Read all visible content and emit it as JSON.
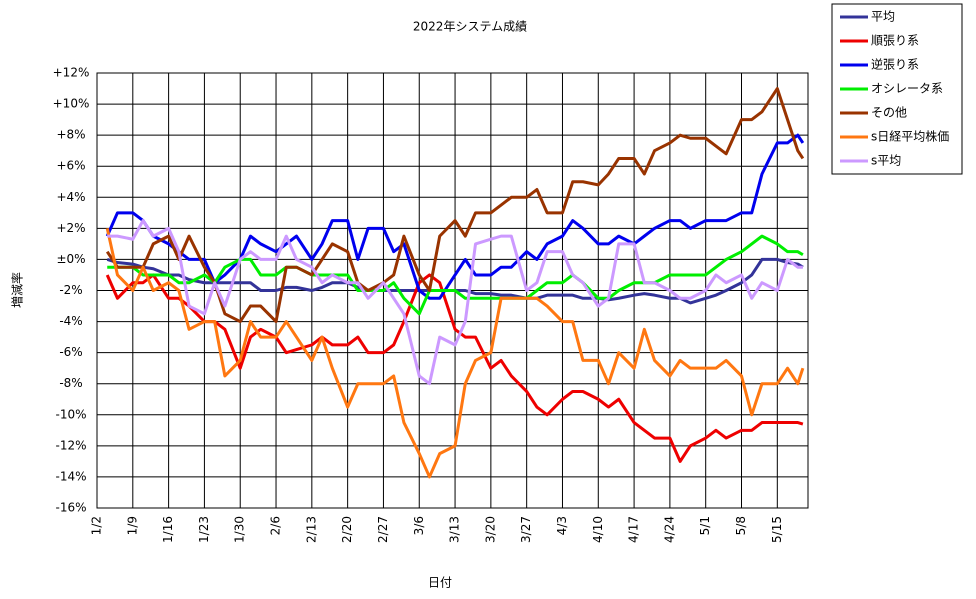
{
  "chart_data": {
    "type": "line",
    "title": "2022年システム成績",
    "x_label": "日付",
    "y_label": "増減率",
    "x": [
      2,
      4,
      7,
      9,
      11,
      14,
      16,
      18,
      21,
      23,
      25,
      28,
      30,
      32,
      35,
      37,
      39,
      42,
      44,
      46,
      49,
      51,
      53,
      56,
      58,
      60,
      63,
      65,
      67,
      70,
      72,
      74,
      77,
      79,
      81,
      84,
      86,
      88,
      91,
      93,
      95,
      98,
      100,
      102,
      105,
      107,
      109,
      112,
      114,
      116,
      119,
      121,
      123,
      126,
      128,
      130,
      133,
      135,
      137,
      138
    ],
    "xlim": [
      0,
      139
    ],
    "xticks": [
      {
        "value": 0,
        "label": "1/2"
      },
      {
        "value": 7,
        "label": "1/9"
      },
      {
        "value": 14,
        "label": "1/16"
      },
      {
        "value": 21,
        "label": "1/23"
      },
      {
        "value": 28,
        "label": "1/30"
      },
      {
        "value": 35,
        "label": "2/6"
      },
      {
        "value": 42,
        "label": "2/13"
      },
      {
        "value": 49,
        "label": "2/20"
      },
      {
        "value": 56,
        "label": "2/27"
      },
      {
        "value": 63,
        "label": "3/6"
      },
      {
        "value": 70,
        "label": "3/13"
      },
      {
        "value": 77,
        "label": "3/20"
      },
      {
        "value": 84,
        "label": "3/27"
      },
      {
        "value": 91,
        "label": "4/3"
      },
      {
        "value": 98,
        "label": "4/10"
      },
      {
        "value": 105,
        "label": "4/17"
      },
      {
        "value": 112,
        "label": "4/24"
      },
      {
        "value": 119,
        "label": "5/1"
      },
      {
        "value": 126,
        "label": "5/8"
      },
      {
        "value": 133,
        "label": "5/15"
      }
    ],
    "ylim": [
      -16,
      12
    ],
    "yticks": [
      {
        "value": -16,
        "label": "-16%"
      },
      {
        "value": -14,
        "label": "-14%"
      },
      {
        "value": -12,
        "label": "-12%"
      },
      {
        "value": -10,
        "label": "-10%"
      },
      {
        "value": -8,
        "label": "-8%"
      },
      {
        "value": -6,
        "label": "-6%"
      },
      {
        "value": -4,
        "label": "-4%"
      },
      {
        "value": -2,
        "label": "-2%"
      },
      {
        "value": 0,
        "label": "±0%"
      },
      {
        "value": 2,
        "label": "+2%"
      },
      {
        "value": 4,
        "label": "+4%"
      },
      {
        "value": 6,
        "label": "+6%"
      },
      {
        "value": 8,
        "label": "+8%"
      },
      {
        "value": 10,
        "label": "+10%"
      },
      {
        "value": 12,
        "label": "+12%"
      }
    ],
    "grid": true,
    "legend": "right",
    "series": [
      {
        "name": "平均",
        "color": "#333399",
        "values": [
          0,
          -0.2,
          -0.3,
          -0.5,
          -0.6,
          -1,
          -1,
          -1.3,
          -1.5,
          -1.5,
          -1.5,
          -1.5,
          -1.5,
          -2,
          -2,
          -1.8,
          -1.8,
          -2,
          -1.8,
          -1.5,
          -1.5,
          -1.8,
          -2,
          -2,
          -2,
          -2,
          -2,
          -2,
          -2,
          -2,
          -2,
          -2.2,
          -2.2,
          -2.3,
          -2.3,
          -2.5,
          -2.5,
          -2.3,
          -2.3,
          -2.3,
          -2.5,
          -2.5,
          -2.6,
          -2.5,
          -2.3,
          -2.2,
          -2.3,
          -2.5,
          -2.5,
          -2.8,
          -2.5,
          -2.3,
          -2,
          -1.5,
          -1,
          0,
          0,
          -0.2,
          -0.3,
          -0.5
        ]
      },
      {
        "name": "順張り系",
        "color": "#ee0000",
        "values": [
          -1,
          -2.5,
          -1.5,
          -1.5,
          -1,
          -2.5,
          -2.5,
          -3,
          -4,
          -4,
          -4.5,
          -7,
          -5,
          -4.5,
          -5,
          -6,
          -5.8,
          -5.5,
          -5,
          -5.5,
          -5.5,
          -5,
          -6,
          -6,
          -5.5,
          -4,
          -1.5,
          -1,
          -1.5,
          -4.5,
          -5,
          -5,
          -7,
          -6.5,
          -7.5,
          -8.5,
          -9.5,
          -10,
          -9,
          -8.5,
          -8.5,
          -9,
          -9.5,
          -9,
          -10.5,
          -11,
          -11.5,
          -11.5,
          -13,
          -12,
          -11.5,
          -11,
          -11.5,
          -11,
          -11,
          -10.5,
          -10.5,
          -10.5,
          -10.5,
          -10.6
        ]
      },
      {
        "name": "逆張り系",
        "color": "#0000ee",
        "values": [
          1.5,
          3,
          3,
          2.5,
          1.5,
          1,
          0.5,
          0,
          0,
          -1.5,
          -1,
          0,
          1.5,
          1,
          0.5,
          1,
          1.5,
          0,
          1,
          2.5,
          2.5,
          0,
          2,
          2,
          0.5,
          1,
          -2,
          -2.5,
          -2.5,
          -1,
          0,
          -1,
          -1,
          -0.5,
          -0.5,
          0.5,
          0,
          1,
          1.5,
          2.5,
          2,
          1,
          1,
          1.5,
          1,
          1.5,
          2,
          2.5,
          2.5,
          2,
          2.5,
          2.5,
          2.5,
          3,
          3,
          5.5,
          7.5,
          7.5,
          8,
          7.5
        ]
      },
      {
        "name": "オシレータ系",
        "color": "#00ee00",
        "values": [
          -0.5,
          -0.5,
          -0.5,
          -1,
          -1,
          -1,
          -1.5,
          -1.5,
          -1,
          -1.5,
          -0.5,
          0,
          0,
          -1,
          -1,
          -0.5,
          -0.5,
          -1,
          -1,
          -1,
          -1,
          -2,
          -2,
          -2,
          -1.5,
          -2.5,
          -3.5,
          -2,
          -2,
          -2,
          -2.5,
          -2.5,
          -2.5,
          -2.5,
          -2.5,
          -2.5,
          -2,
          -1.5,
          -1.5,
          -1,
          -1.5,
          -2.5,
          -2.5,
          -2,
          -1.5,
          -1.5,
          -1.5,
          -1,
          -1,
          -1,
          -1,
          -0.5,
          0,
          0.5,
          1,
          1.5,
          1,
          0.5,
          0.5,
          0.3
        ]
      },
      {
        "name": "その他",
        "color": "#993300",
        "values": [
          0.5,
          -0.5,
          -0.5,
          -0.5,
          1,
          1.5,
          0,
          1.5,
          -0.5,
          -1.5,
          -3.5,
          -4,
          -3,
          -3,
          -4,
          -0.5,
          -0.5,
          -1,
          0,
          1,
          0.5,
          -1.5,
          -2,
          -1.5,
          -1,
          1.5,
          -1,
          -2,
          1.5,
          2.5,
          1.5,
          3,
          3,
          3.5,
          4,
          4,
          4.5,
          3,
          3,
          5,
          5,
          4.8,
          5.5,
          6.5,
          6.5,
          5.5,
          7,
          7.5,
          8,
          7.8,
          7.8,
          7.3,
          6.8,
          9,
          9,
          9.5,
          11,
          9,
          7,
          6.5
        ]
      },
      {
        "name": "s日経平均株価",
        "color": "#ff7711",
        "values": [
          2,
          -1,
          -2,
          -0.5,
          -2,
          -1.5,
          -2,
          -4.5,
          -4,
          -4,
          -7.5,
          -6.5,
          -4,
          -5,
          -5,
          -4,
          -5,
          -6.5,
          -5,
          -7,
          -9.5,
          -8,
          -8,
          -8,
          -7.5,
          -10.5,
          -12.5,
          -14,
          -12.5,
          -12,
          -8,
          -6.5,
          -6,
          -2.5,
          -2.5,
          -2.5,
          -2.5,
          -3,
          -4,
          -4,
          -6.5,
          -6.5,
          -8,
          -6,
          -7,
          -4.5,
          -6.5,
          -7.5,
          -6.5,
          -7,
          -7,
          -7,
          -6.5,
          -7.5,
          -10,
          -8,
          -8,
          -7,
          -8,
          -7
        ]
      },
      {
        "name": "s平均",
        "color": "#cc99ff",
        "values": [
          1.5,
          1.5,
          1.3,
          2.5,
          1.5,
          2,
          0.5,
          -3,
          -3.5,
          -1.5,
          -3,
          0,
          0.5,
          0,
          0,
          1.5,
          0,
          -0.5,
          -1.5,
          -1,
          -1.5,
          -1.5,
          -2.5,
          -1.5,
          -2.5,
          -3.5,
          -7.5,
          -8,
          -5,
          -5.5,
          -4,
          1,
          1.3,
          1.5,
          1.5,
          -2,
          -1.5,
          0.5,
          0.5,
          -1,
          -1.5,
          -3,
          -2.5,
          1,
          1,
          -1.5,
          -1.5,
          -2,
          -2.5,
          -2.5,
          -2,
          -1,
          -1.5,
          -1,
          -2.5,
          -1.5,
          -2,
          0,
          -0.5,
          -0.5
        ]
      }
    ]
  }
}
